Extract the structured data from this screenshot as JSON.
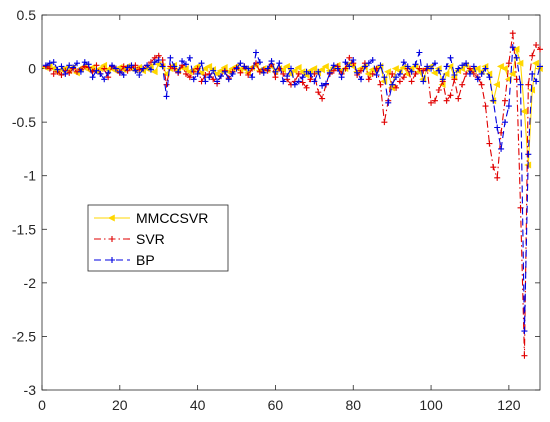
{
  "chart_data": {
    "type": "line",
    "title": "",
    "xlabel": "",
    "ylabel": "",
    "xlim": [
      0,
      128
    ],
    "ylim": [
      -3,
      0.5
    ],
    "xticks": [
      0,
      20,
      40,
      60,
      80,
      100,
      120
    ],
    "yticks": [
      0.5,
      0,
      -0.5,
      -1,
      -1.5,
      -2,
      -2.5,
      -3
    ],
    "xtick_labels": [
      "0",
      "20",
      "40",
      "60",
      "80",
      "100",
      "120"
    ],
    "ytick_labels": [
      "0.5",
      "0",
      "-0.5",
      "-1",
      "-1.5",
      "-2",
      "-2.5",
      "-3"
    ],
    "grid": false,
    "legend_placement": "middle-left",
    "x": [
      1,
      2,
      3,
      4,
      5,
      6,
      7,
      8,
      9,
      10,
      11,
      12,
      13,
      14,
      15,
      16,
      17,
      18,
      19,
      20,
      21,
      22,
      23,
      24,
      25,
      26,
      27,
      28,
      29,
      30,
      31,
      32,
      33,
      34,
      35,
      36,
      37,
      38,
      39,
      40,
      41,
      42,
      43,
      44,
      45,
      46,
      47,
      48,
      49,
      50,
      51,
      52,
      53,
      54,
      55,
      56,
      57,
      58,
      59,
      60,
      61,
      62,
      63,
      64,
      65,
      66,
      67,
      68,
      69,
      70,
      71,
      72,
      73,
      74,
      75,
      76,
      77,
      78,
      79,
      80,
      81,
      82,
      83,
      84,
      85,
      86,
      87,
      88,
      89,
      90,
      91,
      92,
      93,
      94,
      95,
      96,
      97,
      98,
      99,
      100,
      101,
      102,
      103,
      104,
      105,
      106,
      107,
      108,
      109,
      110,
      111,
      112,
      113,
      114,
      115,
      116,
      117,
      118,
      119,
      120,
      121,
      122,
      123,
      124,
      125,
      126,
      127,
      128
    ],
    "series": [
      {
        "name": "MMCCSVR",
        "color": "#FFD700",
        "linestyle": "solid",
        "marker": "triangle-left",
        "values": [
          0.01,
          0.02,
          0.0,
          -0.03,
          -0.01,
          0.0,
          -0.02,
          0.01,
          -0.04,
          0.0,
          0.02,
          -0.01,
          0.01,
          -0.02,
          0.0,
          0.03,
          -0.01,
          0.0,
          -0.02,
          0.01,
          -0.01,
          0.02,
          0.0,
          -0.01,
          0.01,
          -0.02,
          0.0,
          0.02,
          -0.03,
          0.04,
          0.02,
          -0.05,
          0.0,
          0.03,
          -0.02,
          0.01,
          0.0,
          -0.03,
          -0.01,
          0.02,
          -0.04,
          0.0,
          0.02,
          -0.01,
          -0.05,
          -0.02,
          0.01,
          -0.03,
          0.0,
          0.02,
          -0.01,
          0.0,
          -0.04,
          0.01,
          0.03,
          -0.02,
          0.0,
          -0.01,
          0.02,
          -0.03,
          0.0,
          -0.01,
          0.02,
          -0.05,
          -0.02,
          0.01,
          -0.03,
          -0.06,
          -0.02,
          0.0,
          -0.04,
          -0.01,
          0.02,
          -0.02,
          0.01,
          0.03,
          -0.02,
          0.0,
          0.04,
          0.02,
          -0.03,
          0.0,
          0.02,
          -0.05,
          -0.01,
          0.0,
          0.02,
          -0.12,
          -0.03,
          -0.18,
          0.0,
          -0.02,
          0.01,
          -0.05,
          0.0,
          0.02,
          -0.03,
          -0.1,
          0.0,
          0.02,
          -0.04,
          0.0,
          -0.15,
          -0.05,
          0.02,
          -0.08,
          -0.02,
          0.0,
          0.03,
          -0.02,
          -0.01,
          0.0,
          -0.03,
          0.02,
          -0.05,
          -0.3,
          -0.15,
          0.02,
          0.0,
          -0.1,
          -0.05,
          0.18,
          0.05,
          -0.4,
          -0.9,
          -0.2,
          0.05,
          0.0
        ]
      },
      {
        "name": "SVR",
        "color": "#E00000",
        "linestyle": "dashdot",
        "marker": "plus",
        "values": [
          0.02,
          0.0,
          -0.05,
          -0.03,
          -0.06,
          -0.02,
          -0.04,
          0.0,
          -0.03,
          -0.01,
          0.02,
          0.01,
          -0.03,
          0.03,
          -0.05,
          0.0,
          -0.08,
          0.02,
          0.0,
          -0.04,
          0.02,
          -0.02,
          0.01,
          0.03,
          -0.01,
          0.0,
          0.03,
          0.06,
          0.1,
          0.12,
          0.08,
          -0.15,
          0.02,
          0.0,
          -0.04,
          0.03,
          -0.05,
          -0.08,
          -0.03,
          0.0,
          -0.12,
          -0.06,
          -0.05,
          -0.1,
          -0.14,
          -0.07,
          -0.02,
          -0.09,
          -0.03,
          0.01,
          -0.04,
          0.02,
          -0.06,
          0.0,
          0.05,
          -0.03,
          -0.01,
          -0.02,
          0.04,
          -0.08,
          0.0,
          -0.05,
          -0.1,
          -0.15,
          -0.12,
          -0.05,
          -0.13,
          -0.18,
          -0.1,
          -0.05,
          -0.22,
          -0.28,
          -0.15,
          -0.05,
          -0.02,
          0.02,
          -0.05,
          0.0,
          0.1,
          0.05,
          -0.06,
          -0.02,
          0.05,
          -0.1,
          -0.05,
          0.0,
          -0.15,
          -0.5,
          -0.3,
          -0.05,
          -0.18,
          -0.12,
          -0.08,
          0.0,
          -0.12,
          -0.05,
          0.0,
          -0.02,
          0.0,
          -0.32,
          -0.3,
          -0.2,
          -0.12,
          -0.3,
          -0.25,
          -0.1,
          -0.28,
          -0.15,
          -0.05,
          0.0,
          -0.05,
          -0.08,
          -0.15,
          -0.35,
          -0.7,
          -0.92,
          -1.02,
          -0.6,
          -0.3,
          0.05,
          0.33,
          -0.1,
          -1.3,
          -2.68,
          -0.15,
          0.12,
          0.22,
          0.18
        ]
      },
      {
        "name": "BP",
        "color": "#0000E0",
        "linestyle": "dashed",
        "marker": "plus",
        "values": [
          0.03,
          0.05,
          0.06,
          -0.01,
          0.02,
          -0.05,
          0.03,
          0.01,
          0.05,
          -0.03,
          0.06,
          0.04,
          -0.08,
          -0.02,
          -0.05,
          -0.1,
          -0.04,
          0.03,
          0.0,
          -0.03,
          -0.06,
          0.01,
          0.03,
          -0.02,
          -0.06,
          0.0,
          0.03,
          -0.01,
          0.06,
          0.08,
          0.02,
          -0.26,
          0.1,
          0.02,
          -0.03,
          0.07,
          0.04,
          0.1,
          -0.1,
          -0.05,
          0.05,
          -0.12,
          -0.08,
          -0.02,
          -0.12,
          -0.07,
          -0.03,
          -0.1,
          -0.05,
          0.0,
          0.05,
          0.02,
          0.0,
          -0.08,
          0.15,
          0.06,
          -0.04,
          0.0,
          0.07,
          -0.03,
          0.05,
          -0.12,
          -0.07,
          0.0,
          -0.15,
          -0.12,
          -0.08,
          -0.03,
          -0.05,
          -0.12,
          -0.03,
          -0.16,
          -0.14,
          -0.04,
          0.03,
          0.0,
          -0.08,
          0.06,
          0.02,
          0.08,
          -0.04,
          -0.1,
          0.02,
          0.05,
          0.08,
          -0.06,
          0.03,
          -0.08,
          -0.32,
          -0.15,
          -0.08,
          -0.05,
          0.06,
          0.02,
          -0.03,
          0.04,
          0.15,
          -0.12,
          0.02,
          0.0,
          0.05,
          -0.02,
          -0.1,
          0.02,
          0.1,
          -0.06,
          0.0,
          0.03,
          0.05,
          -0.05,
          0.02,
          -0.1,
          -0.05,
          0.0,
          -0.08,
          -0.3,
          -0.55,
          -0.75,
          -0.5,
          -0.35,
          0.2,
          0.1,
          -0.15,
          -2.45,
          -0.8,
          -0.05,
          -0.12,
          0.02
        ]
      }
    ]
  }
}
